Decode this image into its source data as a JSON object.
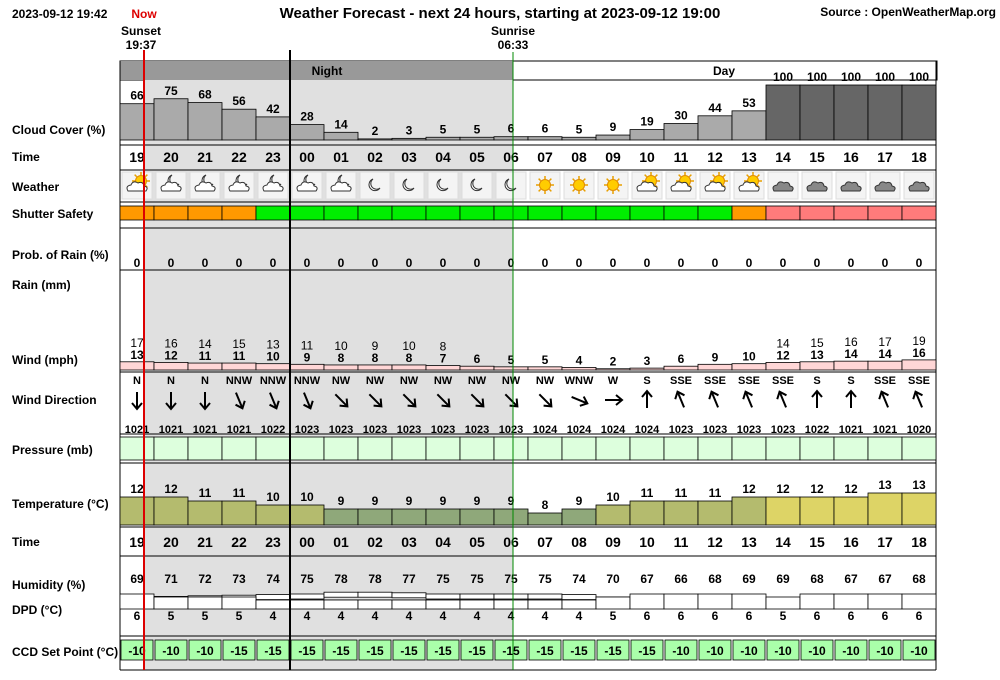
{
  "header": {
    "datetime": "2023-09-12 19:42",
    "now_label": "Now",
    "title": "Weather Forecast - next 24 hours, starting at 2023-09-12 19:00",
    "source": "Source : OpenWeatherMap.org",
    "sunset_label": "Sunset",
    "sunset_time": "19:37",
    "sunrise_label": "Sunrise",
    "sunrise_time": "06:33",
    "night_label": "Night",
    "day_label": "Day"
  },
  "row_labels": {
    "cloud": "Cloud Cover (%)",
    "time": "Time",
    "weather": "Weather",
    "shutter": "Shutter Safety",
    "rain_prob": "Prob. of Rain (%)",
    "rain": "Rain (mm)",
    "wind": "Wind (mph)",
    "wind_dir": "Wind Direction",
    "pressure": "Pressure (mb)",
    "temperature": "Temperature (°C)",
    "time2": "Time",
    "humidity": "Humidity (%)",
    "dpd": "DPD (°C)",
    "ccd": "CCD Set Point (°C)"
  },
  "colors": {
    "cloud_light": "#aaaaaa",
    "cloud_dark": "#666666",
    "night_shade": "#e0e0e0",
    "shutter_orange": "#ff9900",
    "shutter_green": "#00ee00",
    "shutter_red": "#ff7b7b",
    "wind_fill": "#ffd6d6",
    "pressure_fill": "#ddffdd",
    "ccd_fill": "#aaffaa",
    "now_line": "#dd0000",
    "sunrise_line": "#008800"
  },
  "chart_data": {
    "type": "table",
    "hours": [
      "19",
      "20",
      "21",
      "22",
      "23",
      "00",
      "01",
      "02",
      "03",
      "04",
      "05",
      "06",
      "07",
      "08",
      "09",
      "10",
      "11",
      "12",
      "13",
      "14",
      "15",
      "16",
      "17",
      "18"
    ],
    "cloud_cover": [
      66,
      75,
      68,
      56,
      42,
      28,
      14,
      2,
      3,
      5,
      5,
      6,
      6,
      5,
      9,
      19,
      30,
      44,
      53,
      100,
      100,
      100,
      100,
      100
    ],
    "weather": [
      "partly-cloudy-day",
      "partly-cloudy-night",
      "partly-cloudy-night",
      "partly-cloudy-night",
      "partly-cloudy-night",
      "partly-cloudy-night",
      "partly-cloudy-night",
      "clear-night",
      "clear-night",
      "clear-night",
      "clear-night",
      "clear-night",
      "sunny",
      "sunny",
      "sunny",
      "partly-cloudy-day",
      "partly-cloudy-day",
      "partly-cloudy-day",
      "partly-cloudy-day",
      "overcast",
      "overcast",
      "overcast",
      "overcast",
      "overcast"
    ],
    "shutter_safety": [
      "orange",
      "orange",
      "orange",
      "orange",
      "green",
      "green",
      "green",
      "green",
      "green",
      "green",
      "green",
      "green",
      "green",
      "green",
      "green",
      "green",
      "green",
      "green",
      "orange",
      "red",
      "red",
      "red",
      "red",
      "red"
    ],
    "rain_probability": [
      0,
      0,
      0,
      0,
      0,
      0,
      0,
      0,
      0,
      0,
      0,
      0,
      0,
      0,
      0,
      0,
      0,
      0,
      0,
      0,
      0,
      0,
      0,
      0
    ],
    "wind_gust": [
      17,
      16,
      14,
      15,
      13,
      11,
      10,
      9,
      10,
      8,
      null,
      null,
      null,
      null,
      null,
      null,
      null,
      null,
      null,
      14,
      15,
      16,
      17,
      19
    ],
    "wind_speed": [
      13,
      12,
      11,
      11,
      10,
      9,
      8,
      8,
      8,
      7,
      6,
      5,
      5,
      4,
      2,
      3,
      6,
      9,
      10,
      12,
      13,
      14,
      14,
      16
    ],
    "wind_direction": [
      "N",
      "N",
      "N",
      "NNW",
      "NNW",
      "NNW",
      "NW",
      "NW",
      "NW",
      "NW",
      "NW",
      "NW",
      "NW",
      "WNW",
      "W",
      "S",
      "SSE",
      "SSE",
      "SSE",
      "SSE",
      "S",
      "S",
      "SSE",
      "SSE"
    ],
    "pressure": [
      1021,
      1021,
      1021,
      1021,
      1022,
      1023,
      1023,
      1023,
      1023,
      1023,
      1023,
      1023,
      1024,
      1024,
      1024,
      1024,
      1023,
      1023,
      1023,
      1023,
      1022,
      1021,
      1021,
      1020
    ],
    "temperature": [
      12,
      12,
      11,
      11,
      10,
      10,
      9,
      9,
      9,
      9,
      9,
      9,
      8,
      9,
      10,
      11,
      11,
      11,
      12,
      12,
      12,
      12,
      13,
      13
    ],
    "humidity": [
      69,
      71,
      72,
      73,
      74,
      75,
      78,
      78,
      77,
      75,
      75,
      75,
      75,
      74,
      70,
      67,
      66,
      68,
      69,
      69,
      68,
      67,
      67,
      68
    ],
    "dpd": [
      6,
      5,
      5,
      5,
      4,
      4,
      4,
      4,
      4,
      4,
      4,
      4,
      4,
      4,
      5,
      6,
      6,
      6,
      6,
      5,
      6,
      6,
      6,
      6
    ],
    "ccd_set_point": [
      -10,
      -10,
      -10,
      -15,
      -15,
      -15,
      -15,
      -15,
      -15,
      -15,
      -15,
      -15,
      -15,
      -15,
      -15,
      -15,
      -10,
      -10,
      -10,
      -10,
      -10,
      -10,
      -10,
      -10
    ]
  }
}
